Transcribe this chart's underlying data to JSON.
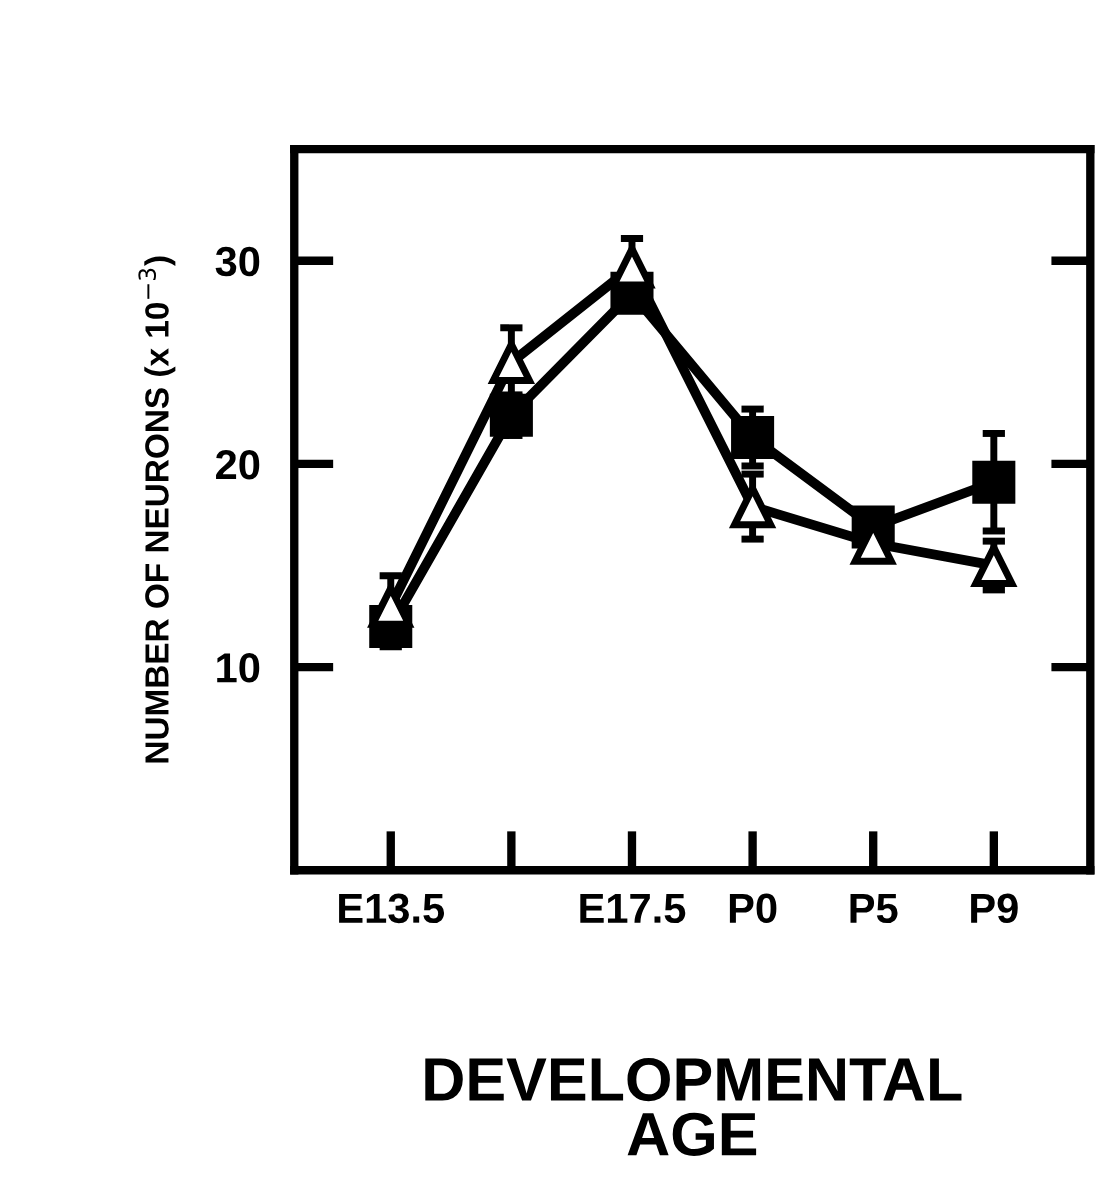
{
  "chart_data": {
    "type": "line",
    "xlabel": "DEVELOPMENTAL\nAGE",
    "ylabel": "NUMBER OF NEURONS (x 10$^{−3}$)",
    "categories": [
      "E13.5",
      null,
      "E17.5",
      "P0",
      "P5",
      "P9"
    ],
    "series": [
      {
        "color": "#000000",
        "marker": "square",
        "values": [
          12,
          22.4,
          28.4,
          21.3,
          16.9,
          19.1
        ],
        "errors": [
          1,
          1,
          0.5,
          1.4,
          0.5,
          2.4
        ]
      },
      {
        "color": "#000000",
        "marker": "triangle",
        "values": [
          13,
          25,
          29.7,
          17.9,
          16.1,
          15
        ],
        "errors": [
          1.5,
          1.7,
          1.4,
          1.6,
          0.5,
          1.2
        ]
      }
    ],
    "ylim": [
      0,
      35.5
    ],
    "yticks": [
      10,
      20,
      30
    ],
    "grid": false,
    "legend": false,
    "line_style": "solid"
  }
}
